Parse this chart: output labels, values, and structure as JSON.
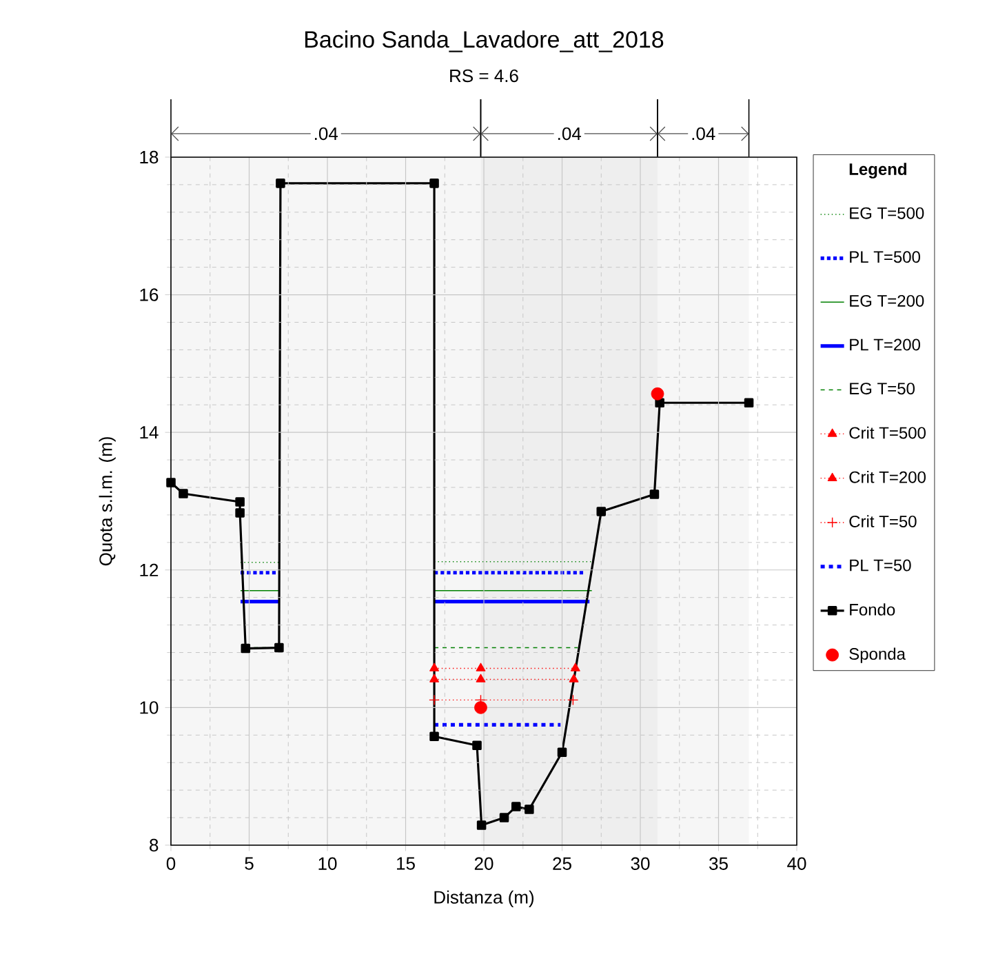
{
  "chart_data": {
    "type": "line",
    "title": "Bacino Sanda_Lavadore_att_2018",
    "subtitle": "RS = 4.6",
    "xlabel": "Distanza (m)",
    "ylabel": "Quota s.l.m. (m)",
    "legend_title": "Legend",
    "legend": "right",
    "grid": true,
    "xlim": [
      0,
      40
    ],
    "xticks": [
      0,
      5,
      10,
      15,
      20,
      25,
      30,
      35,
      40
    ],
    "ylim": [
      8,
      18
    ],
    "yticks": [
      8,
      10,
      12,
      14,
      16,
      18
    ],
    "bands": [
      {
        "axis": "x",
        "from": 0,
        "to": 19.8,
        "label": ".04"
      },
      {
        "axis": "x",
        "from": 19.8,
        "to": 31.1,
        "label": ".04"
      },
      {
        "axis": "x",
        "from": 31.1,
        "to": 36.94,
        "label": ".04"
      }
    ],
    "series": [
      {
        "name": "EG T=500",
        "color": "#008000",
        "line_style": "dotted",
        "marker": "none",
        "x": [
          4.45,
          6.95,
          null,
          16.83,
          26.9
        ],
        "values": [
          12.11,
          12.11,
          null,
          12.12,
          12.12
        ]
      },
      {
        "name": "PL T=500",
        "color": "#0000ff",
        "line_style": "dotted",
        "marker": "none",
        "x": [
          4.45,
          6.95,
          null,
          16.83,
          26.5
        ],
        "values": [
          11.96,
          11.96,
          null,
          11.96,
          11.96
        ]
      },
      {
        "name": "EG T=200",
        "color": "#008000",
        "line_style": "solid",
        "marker": "none",
        "x": [
          4.45,
          6.95,
          null,
          16.83,
          26.9
        ],
        "values": [
          11.7,
          11.7,
          null,
          11.7,
          11.7
        ]
      },
      {
        "name": "PL T=200",
        "color": "#0000ff",
        "line_style": "solid",
        "marker": "none",
        "x": [
          4.45,
          6.95,
          null,
          16.83,
          26.75
        ],
        "values": [
          11.54,
          11.54,
          null,
          11.54,
          11.54
        ]
      },
      {
        "name": "EG T=50",
        "color": "#008000",
        "line_style": "dashed",
        "marker": "none",
        "x": [
          4.77,
          6.91,
          null,
          16.83,
          26.0
        ],
        "values": [
          10.87,
          10.87,
          null,
          10.87,
          10.87
        ]
      },
      {
        "name": "Crit T=500",
        "color": "#ff0000",
        "line_style": "dotted",
        "marker": "triangle-down",
        "x": [
          16.83,
          19.8,
          25.85
        ],
        "values": [
          10.57,
          10.57,
          10.57
        ]
      },
      {
        "name": "Crit T=200",
        "color": "#ff0000",
        "line_style": "dotted",
        "marker": "triangle",
        "x": [
          16.83,
          19.8,
          25.75
        ],
        "values": [
          10.41,
          10.41,
          10.41
        ]
      },
      {
        "name": "Crit T=50",
        "color": "#ff0000",
        "line_style": "dotted",
        "marker": "cross",
        "x": [
          16.83,
          19.8,
          25.7
        ],
        "values": [
          10.11,
          10.11,
          10.11
        ]
      },
      {
        "name": "PL T=50",
        "color": "#0000ff",
        "line_style": "dashed",
        "marker": "none",
        "x": [
          16.83,
          24.9
        ],
        "values": [
          9.75,
          9.75
        ]
      },
      {
        "name": "Fondo",
        "color": "#000000",
        "line_style": "solid",
        "marker": "square",
        "x": [
          0,
          0.79,
          4.41,
          4.41,
          4.77,
          6.91,
          7.0,
          16.83,
          16.83,
          19.56,
          19.85,
          21.3,
          22.06,
          22.9,
          25.0,
          27.5,
          30.9,
          31.24,
          36.94
        ],
        "values": [
          13.27,
          13.11,
          12.99,
          12.83,
          10.86,
          10.87,
          17.62,
          17.62,
          9.58,
          9.45,
          8.29,
          8.4,
          8.56,
          8.52,
          9.35,
          12.85,
          13.1,
          14.43,
          14.43
        ]
      },
      {
        "name": "Sponda",
        "type": "scatter",
        "color": "#ff0000",
        "marker": "circle",
        "x": [
          19.8,
          31.1
        ],
        "values": [
          10.0,
          14.56
        ]
      }
    ]
  }
}
